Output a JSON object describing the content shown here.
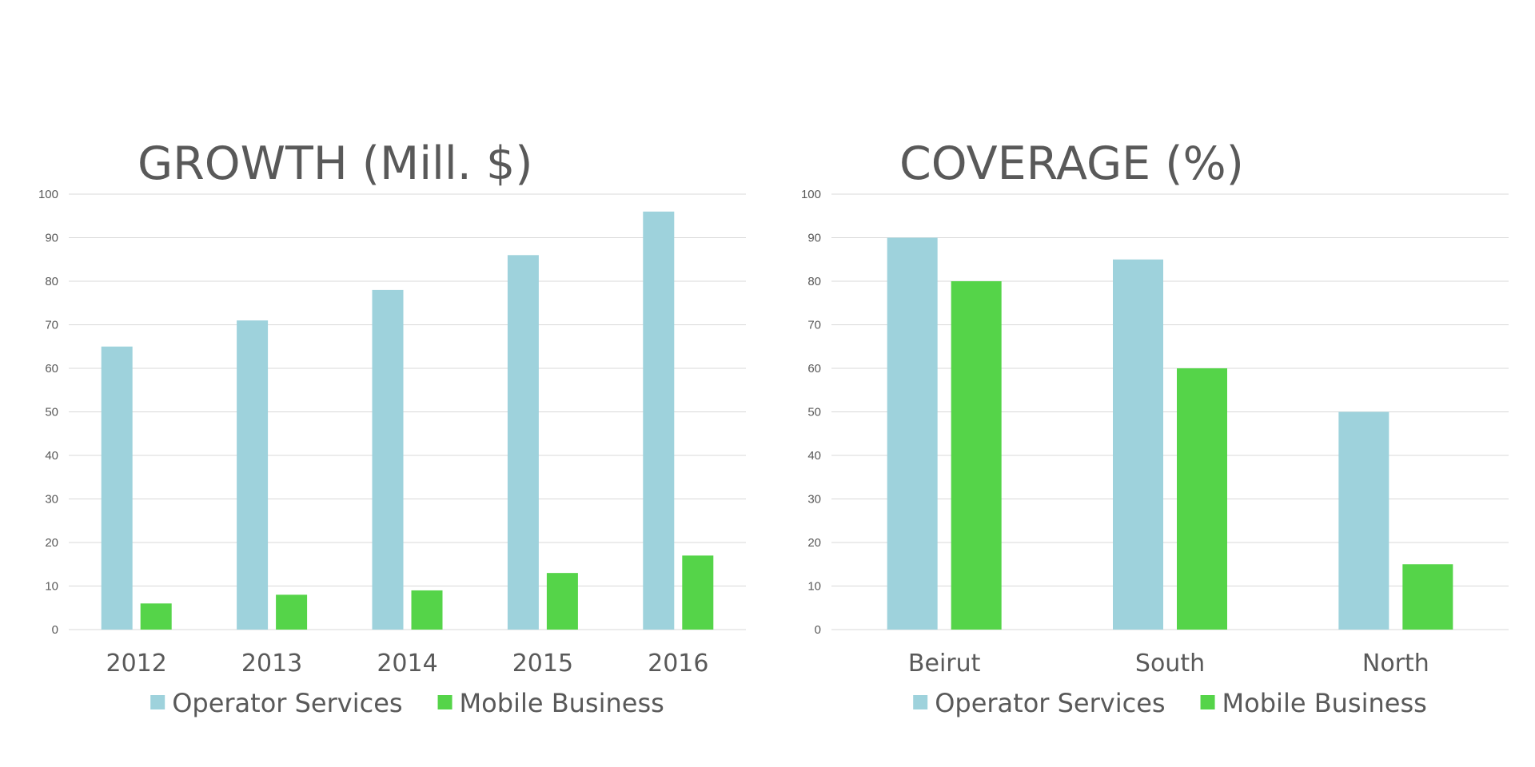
{
  "chart_data": [
    {
      "type": "bar",
      "title": "GROWTH (Mill. $)",
      "categories": [
        "2012",
        "2013",
        "2014",
        "2015",
        "2016"
      ],
      "series": [
        {
          "name": "Operator Services",
          "values": [
            65,
            71,
            78,
            86,
            96
          ],
          "color": "#9ed2dc"
        },
        {
          "name": "Mobile Business",
          "values": [
            6,
            8,
            9,
            13,
            17
          ],
          "color": "#55d449"
        }
      ],
      "ylim": [
        0,
        100
      ],
      "yticks": [
        0,
        10,
        20,
        30,
        40,
        50,
        60,
        70,
        80,
        90,
        100
      ],
      "grid": true,
      "legend": "bottom",
      "xlabel": "",
      "ylabel": ""
    },
    {
      "type": "bar",
      "title": "COVERAGE (%)",
      "categories": [
        "Beirut",
        "South",
        "North"
      ],
      "series": [
        {
          "name": "Operator Services",
          "values": [
            90,
            85,
            50
          ],
          "color": "#9ed2dc"
        },
        {
          "name": "Mobile Business",
          "values": [
            80,
            60,
            15
          ],
          "color": "#55d449"
        }
      ],
      "ylim": [
        0,
        100
      ],
      "yticks": [
        0,
        10,
        20,
        30,
        40,
        50,
        60,
        70,
        80,
        90,
        100
      ],
      "grid": true,
      "legend": "bottom",
      "xlabel": "",
      "ylabel": ""
    }
  ]
}
